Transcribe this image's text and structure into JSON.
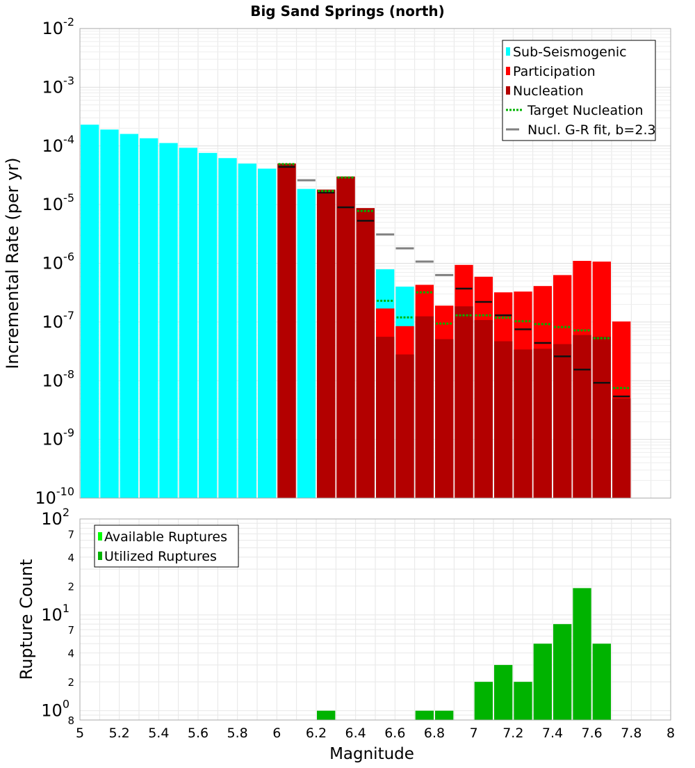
{
  "title": "Big Sand Springs (north)",
  "chart_data": [
    {
      "type": "bar",
      "y_scale": "log",
      "ylabel": "Incremental Rate (per yr)",
      "xlabel": "Magnitude",
      "xlim": [
        5,
        8
      ],
      "ylim": [
        1e-10,
        0.01
      ],
      "y_tick_labels": [
        {
          "base": "10",
          "exp": "-2"
        },
        {
          "base": "10",
          "exp": "-3"
        },
        {
          "base": "10",
          "exp": "-4"
        },
        {
          "base": "10",
          "exp": "-5"
        },
        {
          "base": "10",
          "exp": "-6"
        },
        {
          "base": "10",
          "exp": "-7"
        },
        {
          "base": "10",
          "exp": "-8"
        },
        {
          "base": "10",
          "exp": "-9"
        },
        {
          "base": "10",
          "exp": "-10"
        }
      ],
      "grid": true,
      "legend_position": "top-right",
      "legend": [
        {
          "label": "Sub-Seismogenic",
          "color": "#00ffff",
          "style": "bar"
        },
        {
          "label": "Participation",
          "color": "#ff0000",
          "style": "bar"
        },
        {
          "label": "Nucleation",
          "color": "#b30000",
          "style": "bar"
        },
        {
          "label": "Target Nucleation",
          "color": "#00b300",
          "style": "dotted"
        },
        {
          "label": "Nucl. G-R fit, b=2.3",
          "color": "#808080",
          "style": "line"
        }
      ],
      "bin_width": 0.1,
      "subseismogenic": {
        "color": "#00ffff",
        "x": [
          5.05,
          5.15,
          5.25,
          5.35,
          5.45,
          5.55,
          5.65,
          5.75,
          5.85,
          5.95,
          6.15,
          6.55,
          6.65
        ],
        "values": [
          0.00023,
          0.00019,
          0.00016,
          0.000135,
          0.000112,
          9.3e-05,
          7.6e-05,
          6.2e-05,
          5e-05,
          4.1e-05,
          1.85e-05,
          7.9e-07,
          4e-07
        ]
      },
      "participation": {
        "color": "#ff0000",
        "x": [
          6.05,
          6.25,
          6.35,
          6.45,
          6.55,
          6.65,
          6.75,
          6.85,
          6.95,
          7.05,
          7.15,
          7.25,
          7.35,
          7.45,
          7.55,
          7.65,
          7.75
        ],
        "values": [
          5e-05,
          1.8e-05,
          3e-05,
          8.7e-06,
          1.7e-07,
          8.5e-08,
          4.3e-07,
          1.9e-07,
          9.4e-07,
          5.9e-07,
          3.2e-07,
          3.3e-07,
          4.1e-07,
          6.3e-07,
          1.1e-06,
          1.07e-06,
          1.02e-07
        ]
      },
      "nucleation": {
        "color": "#b30000",
        "x": [
          6.05,
          6.25,
          6.35,
          6.45,
          6.55,
          6.65,
          6.75,
          6.85,
          6.95,
          7.05,
          7.15,
          7.25,
          7.35,
          7.45,
          7.55,
          7.65,
          7.75
        ],
        "values": [
          5e-05,
          1.8e-05,
          3e-05,
          8.7e-06,
          5.6e-08,
          2.8e-08,
          1.25e-07,
          5.1e-08,
          1.85e-07,
          1.08e-07,
          4.7e-08,
          3.4e-08,
          3.5e-08,
          4.2e-08,
          6e-08,
          5.6e-08,
          5e-09
        ]
      },
      "target_nucleation": {
        "color": "#00b300",
        "x": [
          6.05,
          6.25,
          6.35,
          6.45,
          6.55,
          6.65,
          6.75,
          6.85,
          6.95,
          7.05,
          7.15,
          7.25,
          7.35,
          7.45,
          7.55,
          7.65,
          7.75
        ],
        "values": [
          4.9e-05,
          1.7e-05,
          2.9e-05,
          7.8e-06,
          2.3e-07,
          1.2e-07,
          3.2e-07,
          9.4e-08,
          1.3e-07,
          1.3e-07,
          1.18e-07,
          1.03e-07,
          9.2e-08,
          8.2e-08,
          7.2e-08,
          5.3e-08,
          7.5e-09
        ]
      },
      "nucleation_markers": {
        "color": "#111111",
        "x": [
          6.05,
          6.25,
          6.35,
          6.45,
          6.95,
          7.05,
          7.15,
          7.25,
          7.35,
          7.45,
          7.55,
          7.65,
          7.75
        ],
        "values": [
          4.4e-05,
          1.6e-05,
          9e-06,
          5.3e-06,
          3.7e-07,
          2.2e-07,
          1.3e-07,
          7.5e-08,
          4.4e-08,
          2.6e-08,
          1.55e-08,
          9.2e-09,
          5.4e-09
        ]
      },
      "gr_fit": {
        "color": "#808080",
        "x": [
          6.15,
          6.55,
          6.65,
          6.75,
          6.85
        ],
        "values": [
          2.6e-05,
          3.1e-06,
          1.8e-06,
          1.07e-06,
          6.3e-07
        ]
      }
    },
    {
      "type": "bar",
      "y_scale": "log",
      "ylabel": "Rupture Count",
      "xlabel": "Magnitude",
      "xlim": [
        5,
        8
      ],
      "ylim": [
        0.8,
        100
      ],
      "x_tick_labels": [
        "5",
        "5.2",
        "5.4",
        "5.6",
        "5.8",
        "6",
        "6.2",
        "6.4",
        "6.6",
        "6.8",
        "7",
        "7.2",
        "7.4",
        "7.6",
        "7.8",
        "8"
      ],
      "y_major_ticks": [
        {
          "base": "10",
          "exp": "2",
          "value": 100
        },
        {
          "base": "10",
          "exp": "1",
          "value": 10
        },
        {
          "base": "10",
          "exp": "0",
          "value": 1
        }
      ],
      "y_minor_ticks": [
        {
          "label": "7",
          "value": 70
        },
        {
          "label": "4",
          "value": 40
        },
        {
          "label": "2",
          "value": 20
        },
        {
          "label": "7",
          "value": 7
        },
        {
          "label": "4",
          "value": 4
        },
        {
          "label": "2",
          "value": 2
        },
        {
          "label": "8",
          "value": 0.8
        }
      ],
      "grid": true,
      "legend_position": "top-left",
      "legend": [
        {
          "label": "Available Ruptures",
          "color": "#00ff00"
        },
        {
          "label": "Utilized Ruptures",
          "color": "#00b300"
        }
      ],
      "bin_width": 0.1,
      "utilized": {
        "color": "#00b300",
        "x": [
          6.25,
          6.75,
          6.85,
          7.05,
          7.15,
          7.25,
          7.35,
          7.45,
          7.55,
          7.65
        ],
        "values": [
          1,
          1,
          1,
          2,
          3,
          2,
          5,
          8,
          19,
          5
        ]
      }
    }
  ]
}
